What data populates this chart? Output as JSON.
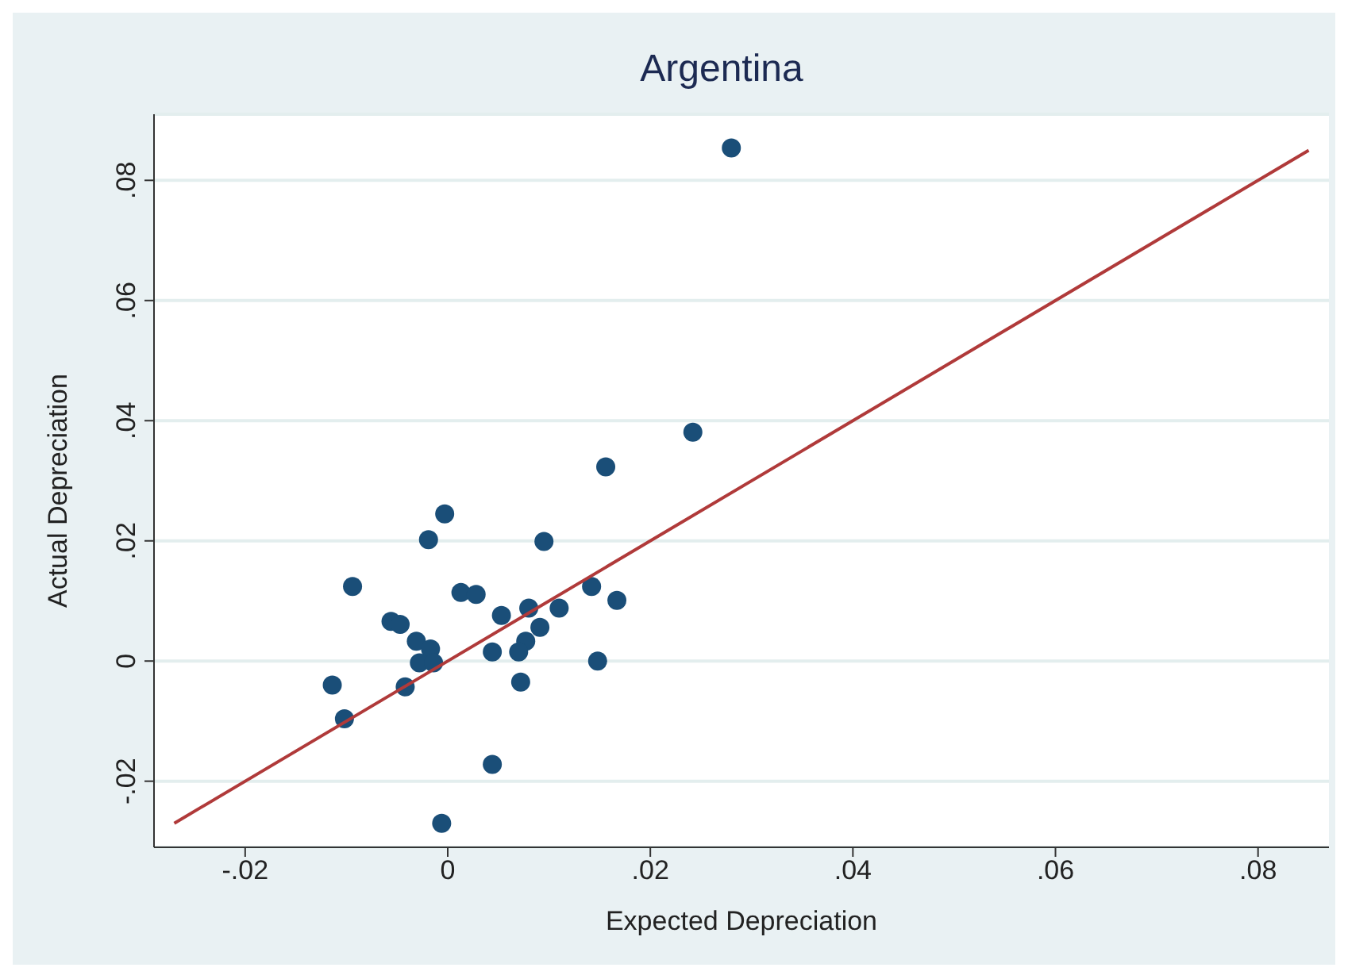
{
  "chart_data": {
    "type": "scatter",
    "title": "Argentina",
    "xlabel": "Expected Depreciation",
    "ylabel": "Actual Depreciation",
    "xlim": [
      -0.029,
      0.087
    ],
    "ylim": [
      -0.031,
      0.091
    ],
    "xticks": [
      {
        "value": -0.02,
        "label": "-.02"
      },
      0,
      {
        "value": 0.02,
        "label": ".02"
      },
      {
        "value": 0.04,
        "label": ".04"
      },
      {
        "value": 0.06,
        "label": ".06"
      },
      {
        "value": 0.08,
        "label": ".08"
      }
    ],
    "yticks": [
      {
        "value": -0.02,
        "label": "-.02"
      },
      0,
      {
        "value": 0.02,
        "label": ".02"
      },
      {
        "value": 0.04,
        "label": ".04"
      },
      {
        "value": 0.06,
        "label": ".06"
      },
      {
        "value": 0.08,
        "label": ".08"
      }
    ],
    "grid": "y",
    "marker": "circle",
    "series": [
      {
        "color": "#1a4e78",
        "x": [
          0.028,
          0.0242,
          0.0156,
          -0.0003,
          -0.0019,
          0.0095,
          -0.0094,
          0.0142,
          0.0013,
          0.0028,
          0.0167,
          -0.0056,
          -0.0047,
          0.0053,
          0.011,
          0.008,
          0.0091,
          -0.0031,
          -0.0017,
          -0.0028,
          -0.0014,
          0.0077,
          0.007,
          0.0044,
          0.0148,
          -0.0114,
          -0.0042,
          0.0072,
          -0.0102,
          0.0044,
          -0.0006
        ],
        "values": [
          0.0854,
          0.0381,
          0.0323,
          0.0245,
          0.0202,
          0.0199,
          0.0124,
          0.0124,
          0.0114,
          0.0111,
          0.0101,
          0.0066,
          0.0061,
          0.0076,
          0.0088,
          0.0088,
          0.0056,
          0.0033,
          0.002,
          -0.0003,
          -0.0003,
          0.0033,
          0.0015,
          0.0015,
          0,
          -0.004,
          -0.0043,
          -0.0035,
          -0.0096,
          -0.0172,
          -0.027
        ]
      },
      {
        "type": "line",
        "color": "#b03a3a",
        "marker": "none",
        "x": [
          -0.027,
          0.085
        ],
        "values": [
          -0.027,
          0.085
        ]
      }
    ]
  }
}
